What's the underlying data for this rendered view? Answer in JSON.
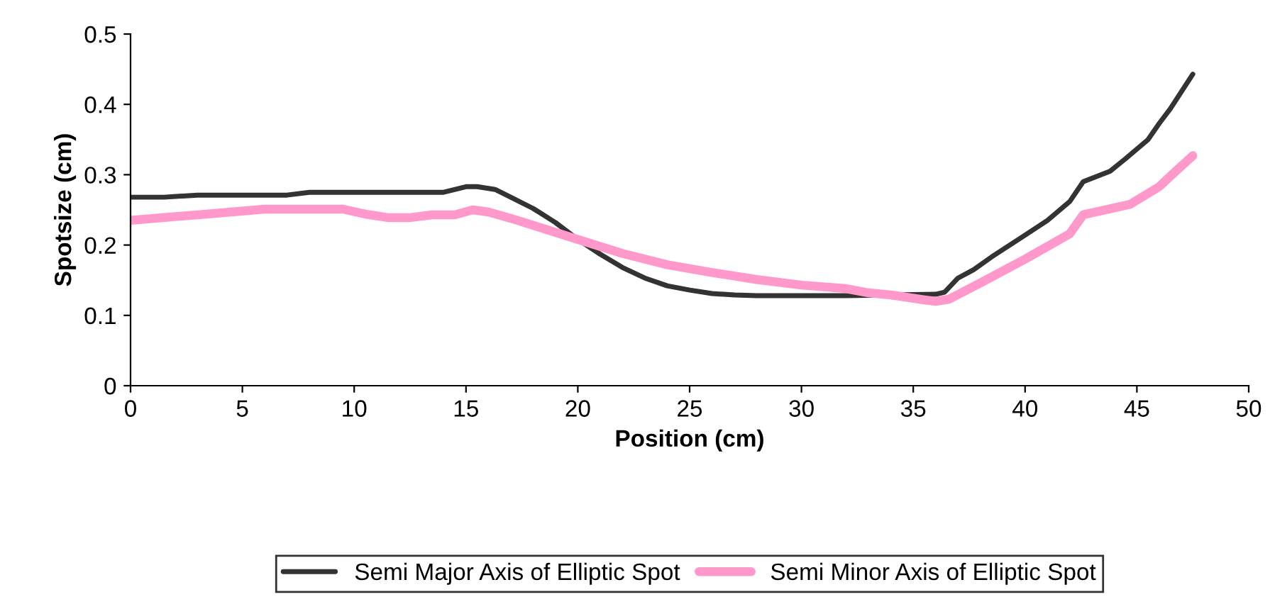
{
  "chart_data": {
    "type": "line",
    "xlabel": "Position (cm)",
    "ylabel": "Spotsize (cm)",
    "xlim": [
      0,
      50
    ],
    "xticks": [
      0,
      5,
      10,
      15,
      20,
      25,
      30,
      35,
      40,
      45,
      50
    ],
    "ylim": [
      0,
      0.5
    ],
    "yticks": [
      0,
      0.1,
      0.2,
      0.3,
      0.4,
      0.5
    ],
    "grid": false,
    "legend": "bottom",
    "marker": "none",
    "line_style": "solid",
    "series": [
      {
        "name": "Semi Major Axis of Elliptic Spot",
        "color": "#333333",
        "x": [
          0,
          1.5,
          3,
          7,
          8,
          14,
          15,
          15.5,
          16.3,
          17,
          18,
          19,
          20,
          21,
          22,
          23,
          24,
          25,
          26,
          27,
          28,
          30,
          32,
          36,
          36.4,
          37,
          37.7,
          38.5,
          40,
          41,
          42,
          42.6,
          43.8,
          44.5,
          45.5,
          46,
          46.5,
          47.5
        ],
        "values": [
          0.268,
          0.268,
          0.271,
          0.271,
          0.275,
          0.275,
          0.283,
          0.283,
          0.279,
          0.268,
          0.252,
          0.232,
          0.208,
          0.187,
          0.168,
          0.153,
          0.142,
          0.136,
          0.131,
          0.129,
          0.128,
          0.128,
          0.128,
          0.13,
          0.133,
          0.153,
          0.165,
          0.183,
          0.214,
          0.235,
          0.262,
          0.29,
          0.305,
          0.323,
          0.35,
          0.373,
          0.394,
          0.443
        ]
      },
      {
        "name": "Semi Minor Axis of Elliptic Spot",
        "color": "#ff99cc",
        "x": [
          0,
          3,
          6,
          8,
          9.5,
          10.5,
          11.5,
          12.5,
          13.5,
          14.5,
          15.3,
          16,
          17,
          18,
          19,
          20,
          22,
          24,
          26,
          28,
          30,
          32,
          33,
          34,
          35.5,
          36,
          36.6,
          38,
          40,
          42,
          42.6,
          44.7,
          46,
          46.5,
          47.5
        ],
        "values": [
          0.235,
          0.243,
          0.251,
          0.251,
          0.251,
          0.244,
          0.239,
          0.239,
          0.243,
          0.243,
          0.25,
          0.247,
          0.238,
          0.228,
          0.218,
          0.208,
          0.188,
          0.172,
          0.161,
          0.151,
          0.143,
          0.138,
          0.132,
          0.129,
          0.122,
          0.12,
          0.123,
          0.146,
          0.18,
          0.216,
          0.243,
          0.258,
          0.283,
          0.298,
          0.327
        ]
      }
    ]
  }
}
